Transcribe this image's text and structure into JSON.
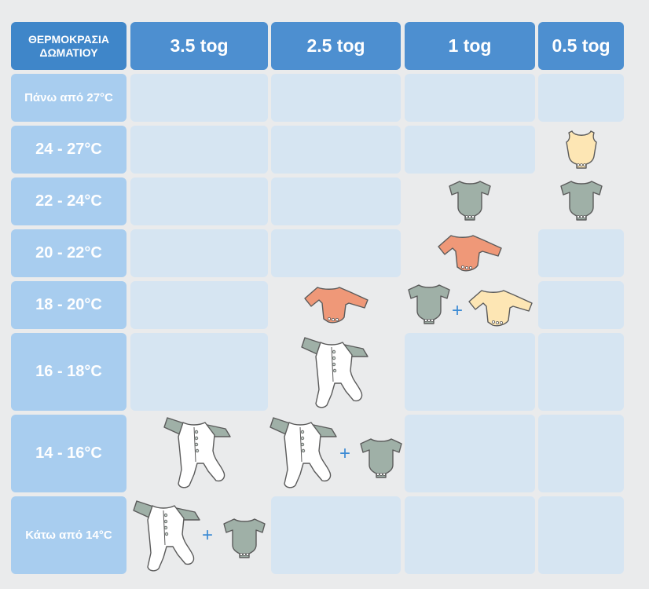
{
  "header": {
    "corner_line1": "ΘΕΡΜΟΚΡΑΣΙΑ",
    "corner_line2": "ΔΩΜΑΤΙΟΥ",
    "columns": [
      "3.5 tog",
      "2.5 tog",
      "1 tog",
      "0.5 tog"
    ]
  },
  "rows": [
    "Πάνω από 27°C",
    "24 - 27°C",
    "22 - 24°C",
    "20 - 22°C",
    "18 - 20°C",
    "16 - 18°C",
    "14 - 16°C",
    "Κάτω από 14°C"
  ],
  "plus_sign": "+",
  "colors": {
    "corner": "#3f86c9",
    "column_header": "#4d8fd0",
    "row_header": "#a8cdef",
    "empty_cell": "#d6e5f2",
    "background": "#eaebec",
    "bodysuit_grey": "#9fb0a7",
    "bodysuit_yellow": "#fde6b4",
    "longsleeve_orange": "#ef9878",
    "longsleeve_yellow": "#fde6b4",
    "sleepsuit_white": "#ffffff",
    "plus_blue": "#3d8bd4"
  }
}
